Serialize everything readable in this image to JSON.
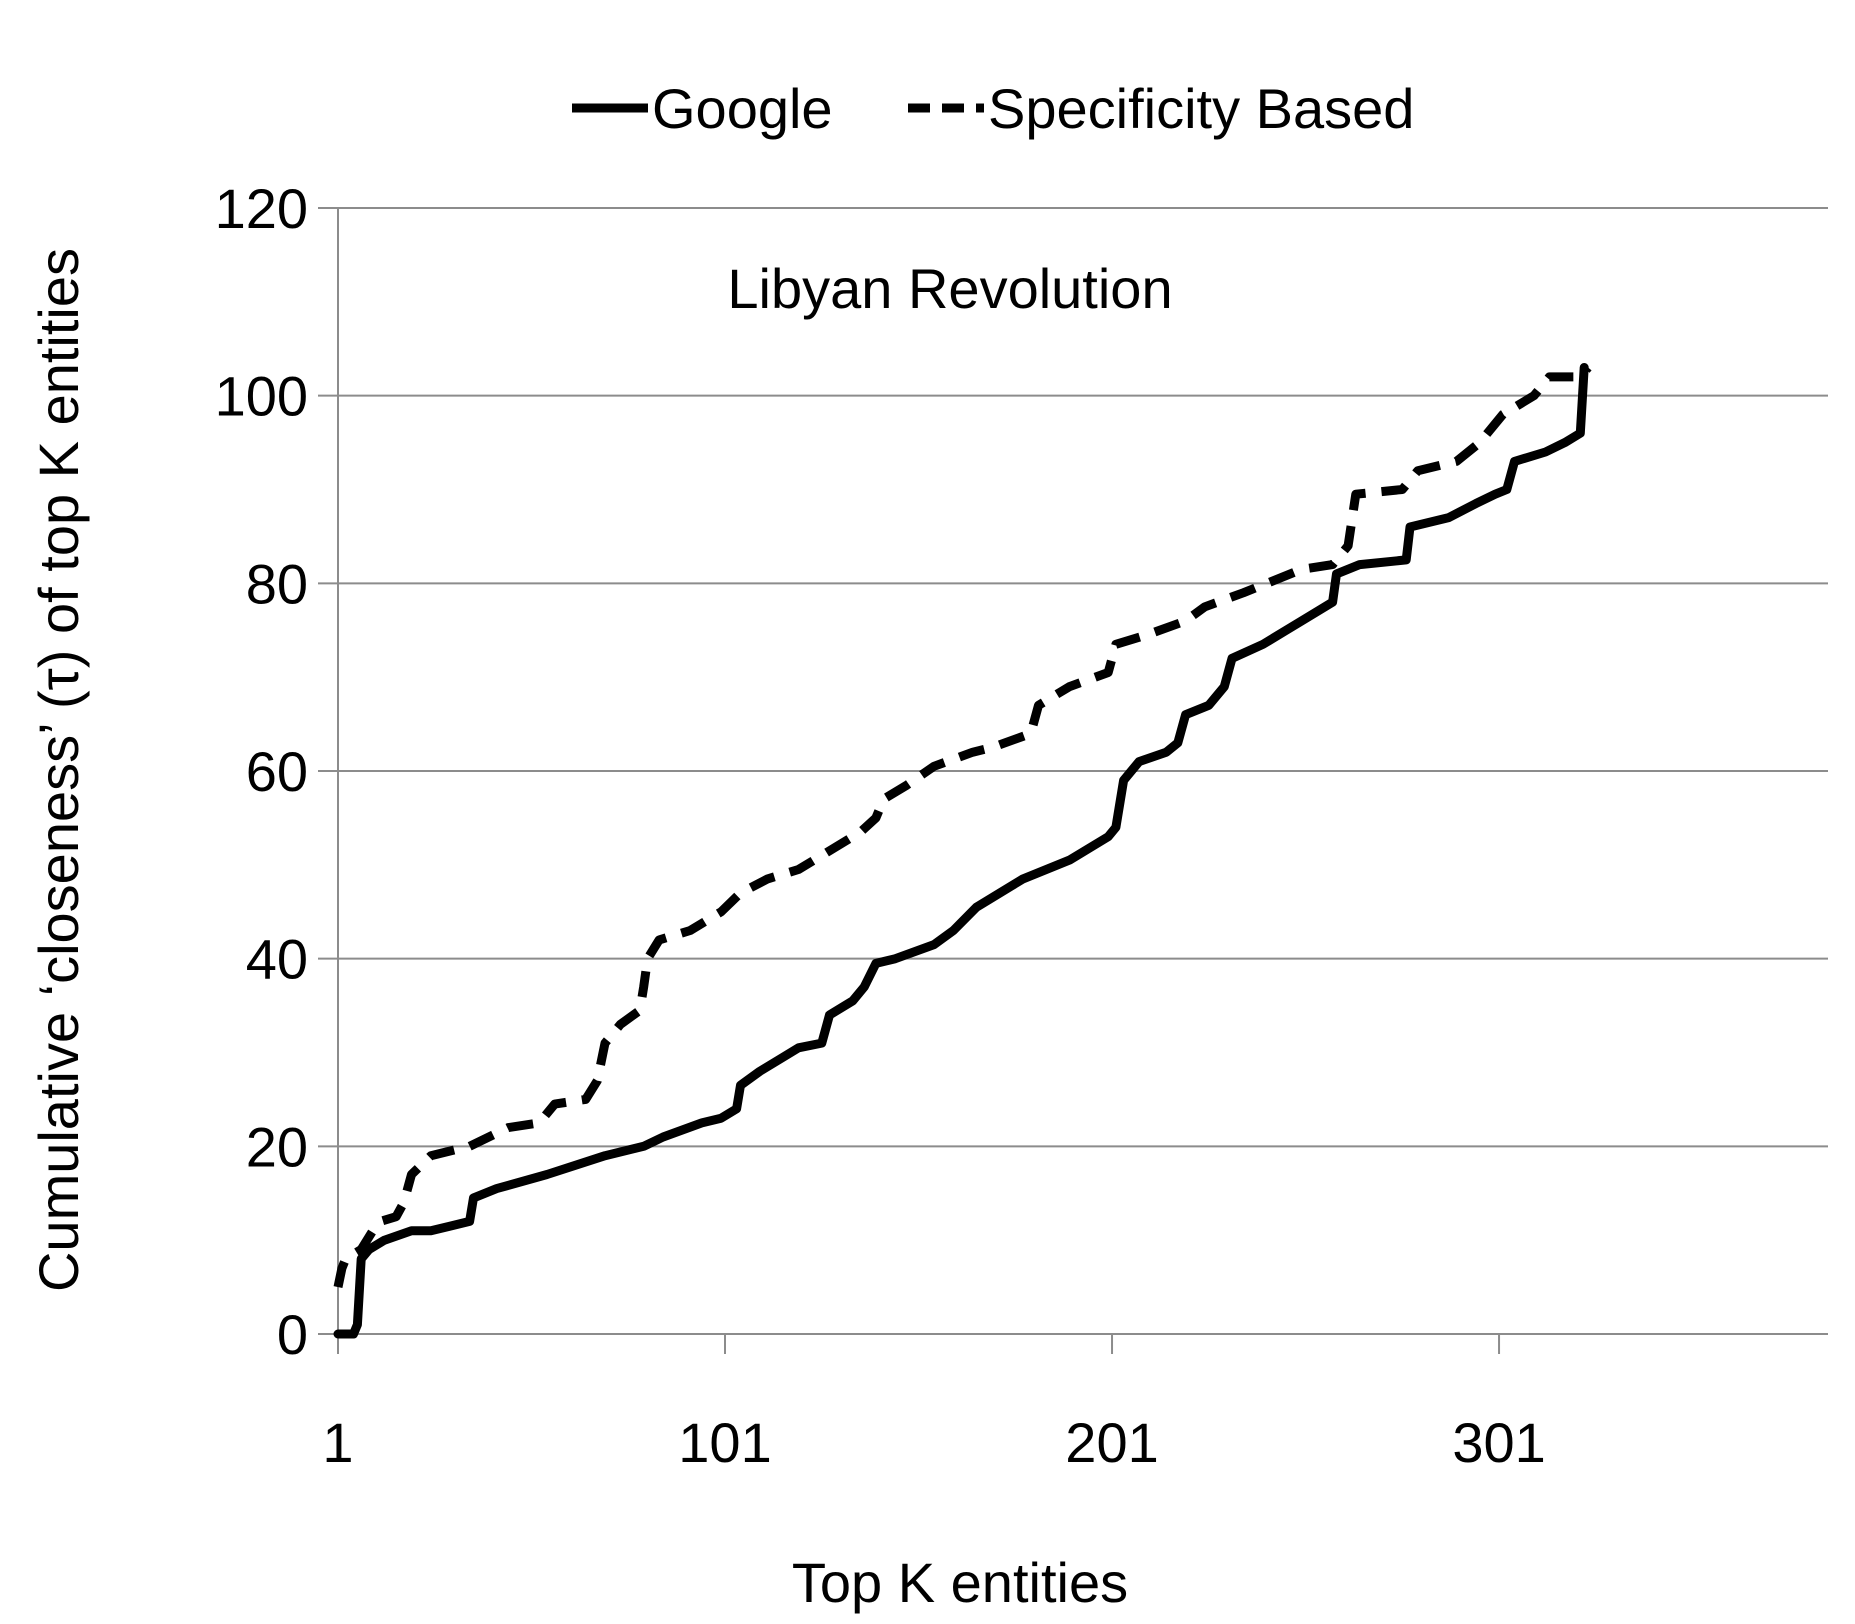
{
  "chart_data": {
    "type": "line",
    "title": "",
    "annotation": "Libyan Revolution",
    "xlabel": "Top K entities",
    "ylabel": "Cumulative ‘closeness’ (τ) of top K entities",
    "xlim": [
      1,
      386
    ],
    "ylim": [
      0,
      120
    ],
    "x_ticks": [
      "1",
      "101",
      "201",
      "301"
    ],
    "y_ticks": [
      "0",
      "20",
      "40",
      "60",
      "80",
      "100",
      "120"
    ],
    "grid": true,
    "legend_position": "top",
    "series": [
      {
        "name": "Google",
        "style": "solid",
        "color": "#000000",
        "points": [
          [
            1,
            0
          ],
          [
            5,
            0
          ],
          [
            6,
            1
          ],
          [
            7,
            8
          ],
          [
            9,
            9
          ],
          [
            13,
            10
          ],
          [
            20,
            11
          ],
          [
            25,
            11
          ],
          [
            30,
            11.5
          ],
          [
            35,
            12
          ],
          [
            36,
            14.5
          ],
          [
            42,
            15.5
          ],
          [
            55,
            17
          ],
          [
            70,
            19
          ],
          [
            80,
            20
          ],
          [
            85,
            21
          ],
          [
            95,
            22.5
          ],
          [
            100,
            23
          ],
          [
            104,
            24
          ],
          [
            105,
            26.5
          ],
          [
            110,
            28
          ],
          [
            116,
            29.5
          ],
          [
            120,
            30.5
          ],
          [
            126,
            31
          ],
          [
            128,
            34
          ],
          [
            134,
            35.5
          ],
          [
            137,
            37
          ],
          [
            140,
            39.5
          ],
          [
            145,
            40
          ],
          [
            155,
            41.5
          ],
          [
            160,
            43
          ],
          [
            166,
            45.5
          ],
          [
            172,
            47
          ],
          [
            178,
            48.5
          ],
          [
            190,
            50.5
          ],
          [
            200,
            53
          ],
          [
            202,
            54
          ],
          [
            204,
            59
          ],
          [
            208,
            61
          ],
          [
            215,
            62
          ],
          [
            218,
            63
          ],
          [
            220,
            66
          ],
          [
            226,
            67
          ],
          [
            230,
            69
          ],
          [
            232,
            72
          ],
          [
            240,
            73.5
          ],
          [
            250,
            76
          ],
          [
            258,
            78
          ],
          [
            259,
            81
          ],
          [
            265,
            82
          ],
          [
            277,
            82.5
          ],
          [
            278,
            86
          ],
          [
            288,
            87
          ],
          [
            295,
            88.5
          ],
          [
            300,
            89.5
          ],
          [
            303,
            90
          ],
          [
            305,
            93
          ],
          [
            313,
            94
          ],
          [
            318,
            95
          ],
          [
            322,
            96
          ],
          [
            323,
            103
          ]
        ]
      },
      {
        "name": "Specificity Based",
        "style": "dashed",
        "color": "#000000",
        "points": [
          [
            1,
            5
          ],
          [
            2,
            7
          ],
          [
            3,
            8
          ],
          [
            7,
            9
          ],
          [
            10,
            11
          ],
          [
            12,
            12
          ],
          [
            16,
            12.5
          ],
          [
            18,
            14
          ],
          [
            20,
            17
          ],
          [
            25,
            19
          ],
          [
            35,
            20
          ],
          [
            45,
            22
          ],
          [
            53,
            22.5
          ],
          [
            57,
            24.5
          ],
          [
            65,
            25
          ],
          [
            68,
            27
          ],
          [
            70,
            31
          ],
          [
            74,
            33
          ],
          [
            79,
            34.5
          ],
          [
            80,
            37
          ],
          [
            81,
            40
          ],
          [
            84,
            42
          ],
          [
            92,
            43
          ],
          [
            100,
            45
          ],
          [
            105,
            47
          ],
          [
            112,
            48.5
          ],
          [
            120,
            49.5
          ],
          [
            128,
            51.5
          ],
          [
            136,
            53.5
          ],
          [
            140,
            55
          ],
          [
            142,
            57
          ],
          [
            148,
            58.5
          ],
          [
            155,
            60.5
          ],
          [
            165,
            62
          ],
          [
            170,
            62.5
          ],
          [
            180,
            64
          ],
          [
            182,
            67
          ],
          [
            190,
            69
          ],
          [
            200,
            70.5
          ],
          [
            202,
            73.5
          ],
          [
            210,
            74.5
          ],
          [
            220,
            76
          ],
          [
            225,
            77.5
          ],
          [
            235,
            79
          ],
          [
            250,
            81.5
          ],
          [
            258,
            82
          ],
          [
            262,
            84
          ],
          [
            264,
            89.5
          ],
          [
            276,
            90
          ],
          [
            280,
            92
          ],
          [
            290,
            93
          ],
          [
            296,
            95
          ],
          [
            302,
            98
          ],
          [
            310,
            100
          ],
          [
            314,
            102
          ],
          [
            322,
            102
          ],
          [
            324,
            103
          ]
        ]
      }
    ]
  }
}
